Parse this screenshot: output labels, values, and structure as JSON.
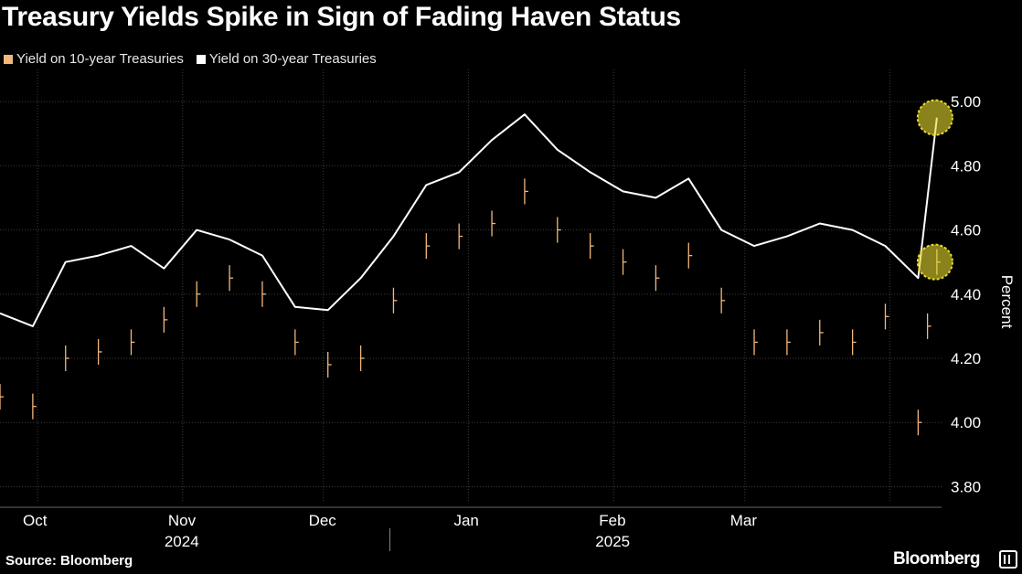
{
  "title": "Treasury Yields Spike in Sign of Fading Haven Status",
  "legend": [
    {
      "label": "Yield on 10-year Treasuries",
      "color": "#f2b77a"
    },
    {
      "label": "Yield on 30-year Treasuries",
      "color": "#ffffff"
    }
  ],
  "footer": {
    "source": "Source: Bloomberg",
    "brand": "Bloomberg"
  },
  "chart_data": {
    "type": "line",
    "title": "Treasury Yields Spike in Sign of Fading Haven Status",
    "ylabel": "Percent",
    "ylim": [
      3.75,
      5.1
    ],
    "yticks": [
      3.8,
      4.0,
      4.2,
      4.4,
      4.6,
      4.8,
      5.0
    ],
    "ytick_labels": [
      "3.80",
      "4.00",
      "4.20",
      "4.40",
      "4.60",
      "4.80",
      "5.00"
    ],
    "xlim": [
      "2024-09-23",
      "2025-04-12"
    ],
    "month_ticks": [
      {
        "label": "Oct",
        "date": "2024-10-01"
      },
      {
        "label": "Nov",
        "date": "2024-11-01"
      },
      {
        "label": "Dec",
        "date": "2024-12-01"
      },
      {
        "label": "Jan",
        "date": "2025-01-01"
      },
      {
        "label": "Feb",
        "date": "2025-02-01"
      },
      {
        "label": "Mar",
        "date": "2025-03-01"
      }
    ],
    "year_labels": [
      {
        "label": "2024",
        "date": "2024-11-01"
      },
      {
        "label": "2025",
        "date": "2025-02-01"
      }
    ],
    "grid": true,
    "legend_position": "top-left",
    "series": [
      {
        "name": "Yield on 10-year Treasuries",
        "style": "hlc-bars",
        "color": "#f2b77a",
        "x": [
          "2024-09-23",
          "2024-09-30",
          "2024-10-07",
          "2024-10-14",
          "2024-10-21",
          "2024-10-28",
          "2024-11-04",
          "2024-11-11",
          "2024-11-18",
          "2024-11-25",
          "2024-12-02",
          "2024-12-09",
          "2024-12-16",
          "2024-12-23",
          "2024-12-30",
          "2025-01-06",
          "2025-01-13",
          "2025-01-20",
          "2025-01-27",
          "2025-02-03",
          "2025-02-10",
          "2025-02-17",
          "2025-02-24",
          "2025-03-03",
          "2025-03-10",
          "2025-03-17",
          "2025-03-24",
          "2025-03-31",
          "2025-04-07",
          "2025-04-09",
          "2025-04-11"
        ],
        "y": [
          4.08,
          4.05,
          4.2,
          4.22,
          4.25,
          4.32,
          4.4,
          4.45,
          4.4,
          4.25,
          4.18,
          4.2,
          4.38,
          4.55,
          4.58,
          4.62,
          4.72,
          4.6,
          4.55,
          4.5,
          4.45,
          4.52,
          4.38,
          4.25,
          4.25,
          4.28,
          4.25,
          4.33,
          4.0,
          4.3,
          4.5
        ]
      },
      {
        "name": "Yield on 30-year Treasuries",
        "style": "line",
        "color": "#ffffff",
        "x": [
          "2024-09-23",
          "2024-09-30",
          "2024-10-07",
          "2024-10-14",
          "2024-10-21",
          "2024-10-28",
          "2024-11-04",
          "2024-11-11",
          "2024-11-18",
          "2024-11-25",
          "2024-12-02",
          "2024-12-09",
          "2024-12-16",
          "2024-12-23",
          "2024-12-30",
          "2025-01-06",
          "2025-01-13",
          "2025-01-20",
          "2025-01-27",
          "2025-02-03",
          "2025-02-10",
          "2025-02-17",
          "2025-02-24",
          "2025-03-03",
          "2025-03-10",
          "2025-03-17",
          "2025-03-24",
          "2025-03-31",
          "2025-04-07",
          "2025-04-09",
          "2025-04-11"
        ],
        "y": [
          4.34,
          4.3,
          4.5,
          4.52,
          4.55,
          4.48,
          4.6,
          4.57,
          4.52,
          4.36,
          4.35,
          4.45,
          4.58,
          4.74,
          4.78,
          4.88,
          4.96,
          4.85,
          4.78,
          4.72,
          4.7,
          4.76,
          4.6,
          4.55,
          4.58,
          4.62,
          4.6,
          4.55,
          4.45,
          4.7,
          4.95
        ]
      }
    ],
    "annotations": [
      {
        "series": "Yield on 10-year Treasuries",
        "date": "2025-04-11",
        "value": 4.5,
        "shape": "circle",
        "color": "#e6d92e"
      },
      {
        "series": "Yield on 30-year Treasuries",
        "date": "2025-04-11",
        "value": 4.95,
        "shape": "circle",
        "color": "#e6d92e"
      }
    ]
  }
}
